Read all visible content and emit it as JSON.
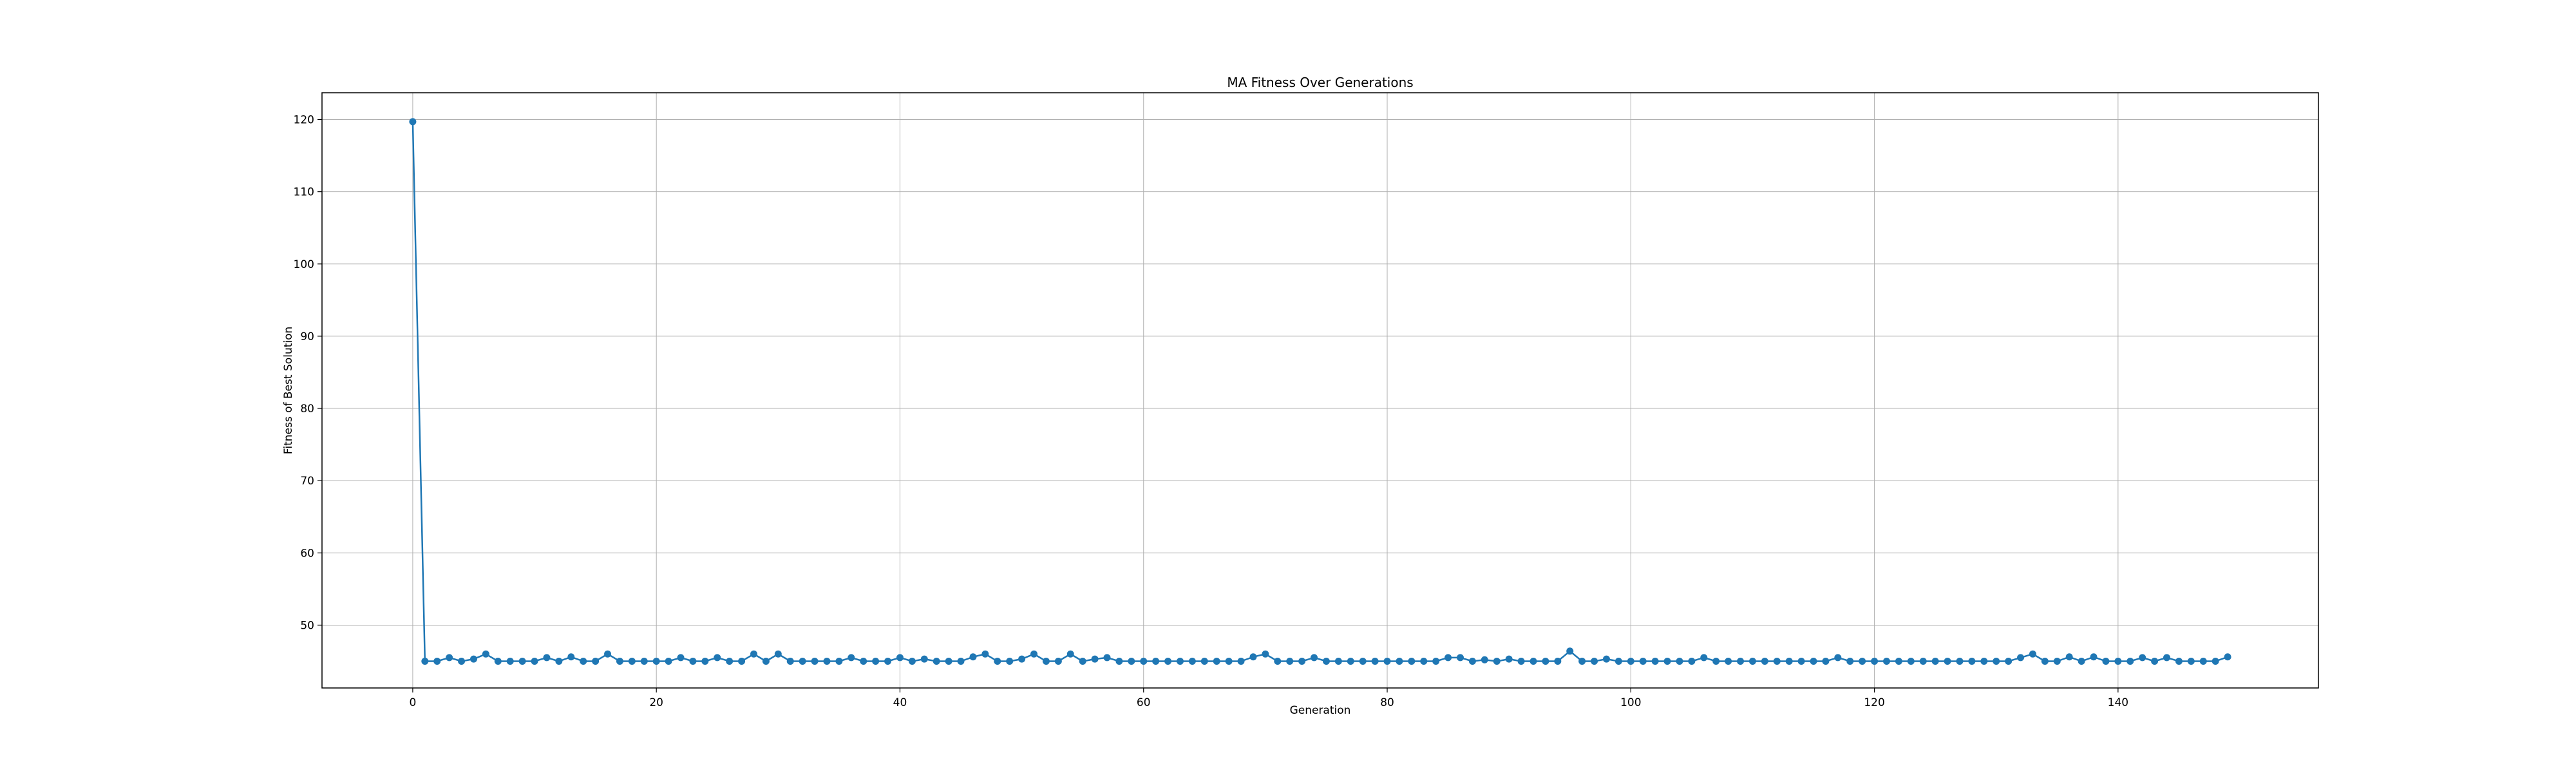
{
  "chart_data": {
    "type": "line",
    "title": "MA Fitness Over Generations",
    "xlabel": "Generation",
    "ylabel": "Fitness of Best Solution",
    "xlim": [
      -7.45,
      156.45
    ],
    "ylim": [
      41.3,
      123.7
    ],
    "xticks": [
      0,
      20,
      40,
      60,
      80,
      100,
      120,
      140
    ],
    "yticks": [
      50,
      60,
      70,
      80,
      90,
      100,
      110,
      120
    ],
    "grid": true,
    "marker": "o",
    "color": "#1f77b4",
    "series": [
      {
        "x": [
          0,
          1,
          2,
          3,
          4,
          5,
          6,
          7,
          8,
          9,
          10,
          11,
          12,
          13,
          14,
          15,
          16,
          17,
          18,
          19,
          20,
          21,
          22,
          23,
          24,
          25,
          26,
          27,
          28,
          29,
          30,
          31,
          32,
          33,
          34,
          35,
          36,
          37,
          38,
          39,
          40,
          41,
          42,
          43,
          44,
          45,
          46,
          47,
          48,
          49,
          50,
          51,
          52,
          53,
          54,
          55,
          56,
          57,
          58,
          59,
          60,
          61,
          62,
          63,
          64,
          65,
          66,
          67,
          68,
          69,
          70,
          71,
          72,
          73,
          74,
          75,
          76,
          77,
          78,
          79,
          80,
          81,
          82,
          83,
          84,
          85,
          86,
          87,
          88,
          89,
          90,
          91,
          92,
          93,
          94,
          95,
          96,
          97,
          98,
          99,
          100,
          101,
          102,
          103,
          104,
          105,
          106,
          107,
          108,
          109,
          110,
          111,
          112,
          113,
          114,
          115,
          116,
          117,
          118,
          119,
          120,
          121,
          122,
          123,
          124,
          125,
          126,
          127,
          128,
          129,
          130,
          131,
          132,
          133,
          134,
          135,
          136,
          137,
          138,
          139,
          140,
          141,
          142,
          143,
          144,
          145,
          146,
          147,
          148,
          149
        ],
        "values": [
          119.7,
          45.0,
          45.0,
          45.5,
          45.0,
          45.3,
          46.0,
          45.0,
          45.0,
          45.0,
          45.0,
          45.5,
          45.0,
          45.6,
          45.0,
          45.0,
          46.0,
          45.0,
          45.0,
          45.0,
          45.0,
          45.0,
          45.5,
          45.0,
          45.0,
          45.5,
          45.0,
          45.0,
          46.0,
          45.0,
          46.0,
          45.0,
          45.0,
          45.0,
          45.0,
          45.0,
          45.5,
          45.0,
          45.0,
          45.0,
          45.5,
          45.0,
          45.3,
          45.0,
          45.0,
          45.0,
          45.6,
          46.0,
          45.0,
          45.0,
          45.3,
          46.0,
          45.0,
          45.0,
          46.0,
          45.0,
          45.3,
          45.5,
          45.0,
          45.0,
          45.0,
          45.0,
          45.0,
          45.0,
          45.0,
          45.0,
          45.0,
          45.0,
          45.0,
          45.6,
          46.0,
          45.0,
          45.0,
          45.0,
          45.5,
          45.0,
          45.0,
          45.0,
          45.0,
          45.0,
          45.0,
          45.0,
          45.0,
          45.0,
          45.0,
          45.5,
          45.5,
          45.0,
          45.2,
          45.0,
          45.3,
          45.0,
          45.0,
          45.0,
          45.0,
          46.4,
          45.0,
          45.0,
          45.3,
          45.0,
          45.0,
          45.0,
          45.0,
          45.0,
          45.0,
          45.0,
          45.5,
          45.0,
          45.0,
          45.0,
          45.0,
          45.0,
          45.0,
          45.0,
          45.0,
          45.0,
          45.0,
          45.5,
          45.0,
          45.0,
          45.0,
          45.0,
          45.0,
          45.0,
          45.0,
          45.0,
          45.0,
          45.0,
          45.0,
          45.0,
          45.0,
          45.0,
          45.5,
          46.0,
          45.0,
          45.0,
          45.6,
          45.0,
          45.6,
          45.0,
          45.0,
          45.0,
          45.5,
          45.0,
          45.5,
          45.0,
          45.0,
          45.0,
          45.0,
          45.6
        ]
      }
    ]
  }
}
